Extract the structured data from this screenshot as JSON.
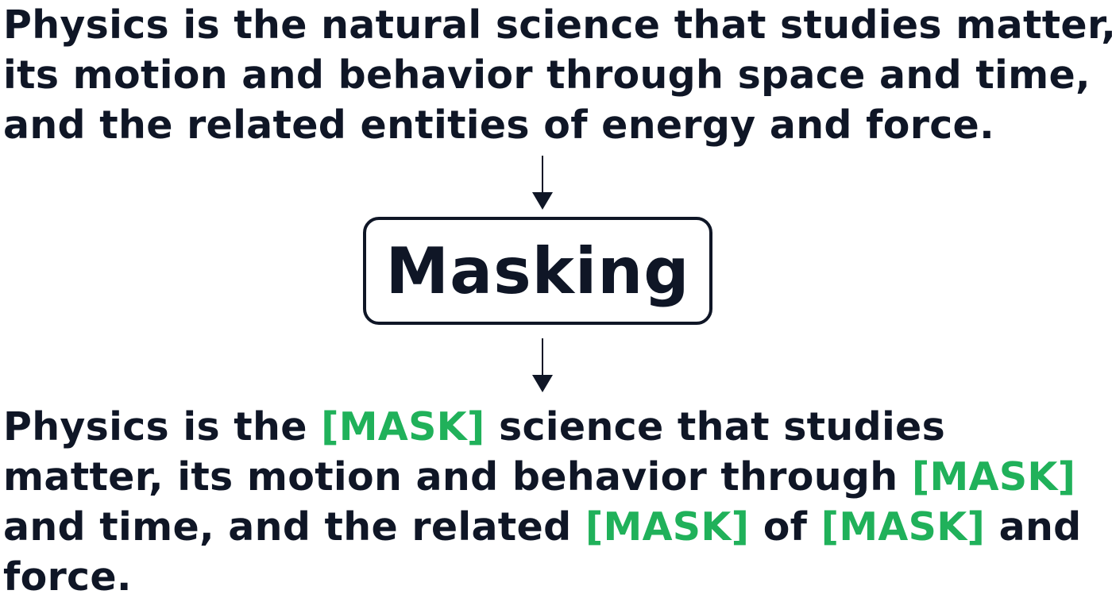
{
  "original_text": {
    "lines": [
      "Physics is the natural science that studies matter,",
      "its motion and behavior through space and time,",
      "and the related entities of energy and force."
    ]
  },
  "process_box": {
    "label": "Masking"
  },
  "masked_text": {
    "mask_token": "[MASK]",
    "lines": [
      [
        {
          "text": "Physics is the ",
          "mask": false
        },
        {
          "text": "[MASK]",
          "mask": true
        },
        {
          "text": " science that studies",
          "mask": false
        }
      ],
      [
        {
          "text": "matter, its motion and behavior through ",
          "mask": false
        },
        {
          "text": "[MASK]",
          "mask": true
        }
      ],
      [
        {
          "text": "and time, and the related ",
          "mask": false
        },
        {
          "text": "[MASK]",
          "mask": true
        },
        {
          "text": " of ",
          "mask": false
        },
        {
          "text": "[MASK]",
          "mask": true
        },
        {
          "text": " and",
          "mask": false
        }
      ],
      [
        {
          "text": "force.",
          "mask": false
        }
      ]
    ]
  },
  "colors": {
    "text": "#0f1626",
    "mask": "#20b15a",
    "background": "#ffffff"
  }
}
